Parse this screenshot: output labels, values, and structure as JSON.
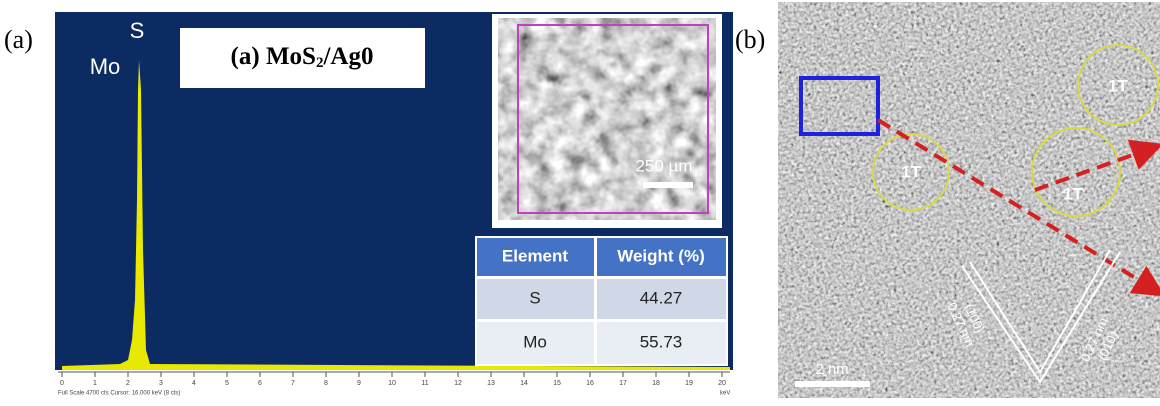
{
  "panel_a": {
    "label": "(a)",
    "peak_labels": {
      "s": "S",
      "mo": "Mo"
    },
    "title": {
      "prefix": "(a) MoS",
      "subscript": "2",
      "suffix": "/Ag0"
    },
    "scale_bar": "250 µm",
    "table": {
      "header": [
        "Element",
        "Weight (%)"
      ],
      "rows": [
        [
          "S",
          "44.27"
        ],
        [
          "Mo",
          "55.73"
        ]
      ]
    },
    "x_axis": {
      "ticks": [
        0,
        1,
        2,
        3,
        4,
        5,
        6,
        7,
        8,
        9,
        10,
        11,
        12,
        13,
        14,
        15,
        16,
        17,
        18,
        19,
        20
      ],
      "unit": "keV",
      "footer": "Full Scale 4700 cts  Cursor: 16.000 keV (8 cts)"
    }
  },
  "panel_b": {
    "label": "(b)",
    "phase_labels": [
      "1T",
      "1T",
      "1T"
    ],
    "scale_bar": "2 nm",
    "d_spacings": [
      {
        "distance": "0.27 nm",
        "plane": "(100)"
      },
      {
        "distance": "0.27 nm",
        "plane": "(010)"
      }
    ]
  }
}
